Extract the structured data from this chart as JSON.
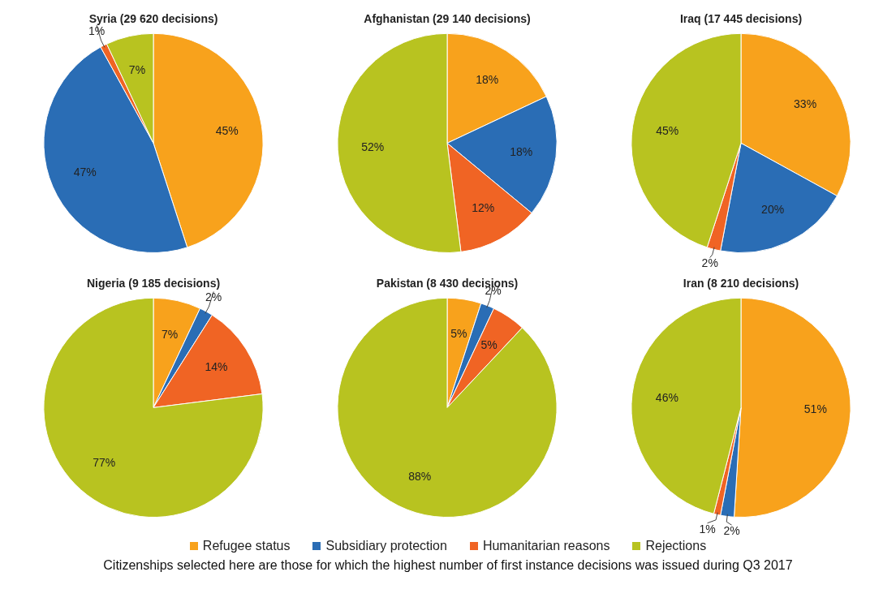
{
  "chart_data": [
    {
      "type": "pie",
      "title": "Syria (29 620 decisions)",
      "categories": [
        "Refugee status",
        "Subsidiary protection",
        "Humanitarian reasons",
        "Rejections"
      ],
      "values": [
        45,
        47,
        1,
        7
      ],
      "value_labels": [
        "45%",
        "47%",
        "1%",
        "7%"
      ],
      "colors": [
        "#f8a21c",
        "#2a6db5",
        "#f06424",
        "#b8c320"
      ],
      "legend": "bottom",
      "annotations": [
        "Citizenships selected here are those for which the highest number of first instance decisions was issued during Q3 2017"
      ]
    },
    {
      "type": "pie",
      "title": "Afghanistan (29 140 decisions)",
      "categories": [
        null,
        null,
        null,
        null
      ],
      "values": [
        18,
        18,
        12,
        52
      ],
      "value_labels": [
        "18%",
        "18%",
        "12%",
        "52%"
      ],
      "colors": [
        "#f8a21c",
        "#2a6db5",
        "#f06424",
        "#b8c320"
      ]
    },
    {
      "type": "pie",
      "title": "Iraq (17 445 decisions)",
      "categories": [
        null,
        null,
        null,
        null
      ],
      "values": [
        33,
        20,
        2,
        45
      ],
      "value_labels": [
        "33%",
        "20%",
        "2%",
        "45%"
      ],
      "colors": [
        "#f8a21c",
        "#2a6db5",
        "#f06424",
        "#b8c320"
      ]
    },
    {
      "type": "pie",
      "title": "Nigeria (9 185 decisions)",
      "categories": [
        null,
        null,
        null,
        null
      ],
      "values": [
        7,
        2,
        14,
        77
      ],
      "value_labels": [
        "7%",
        "2%",
        "14%",
        "77%"
      ],
      "colors": [
        "#f8a21c",
        "#2a6db5",
        "#f06424",
        "#b8c320"
      ]
    },
    {
      "type": "pie",
      "title": "Pakistan (8 430 decisions)",
      "categories": [
        null,
        null,
        null,
        null
      ],
      "values": [
        5,
        2,
        5,
        88
      ],
      "value_labels": [
        "5%",
        "2%",
        "5%",
        "88%"
      ],
      "colors": [
        "#f8a21c",
        "#2a6db5",
        "#f06424",
        "#b8c320"
      ]
    },
    {
      "type": "pie",
      "title": "Iran (8 210 decisions)",
      "categories": [
        null,
        null,
        null,
        null
      ],
      "values": [
        51,
        2,
        1,
        46
      ],
      "value_labels": [
        "51%",
        "2%",
        "1%",
        "46%"
      ],
      "colors": [
        "#f8a21c",
        "#2a6db5",
        "#f06424",
        "#b8c320"
      ]
    }
  ]
}
